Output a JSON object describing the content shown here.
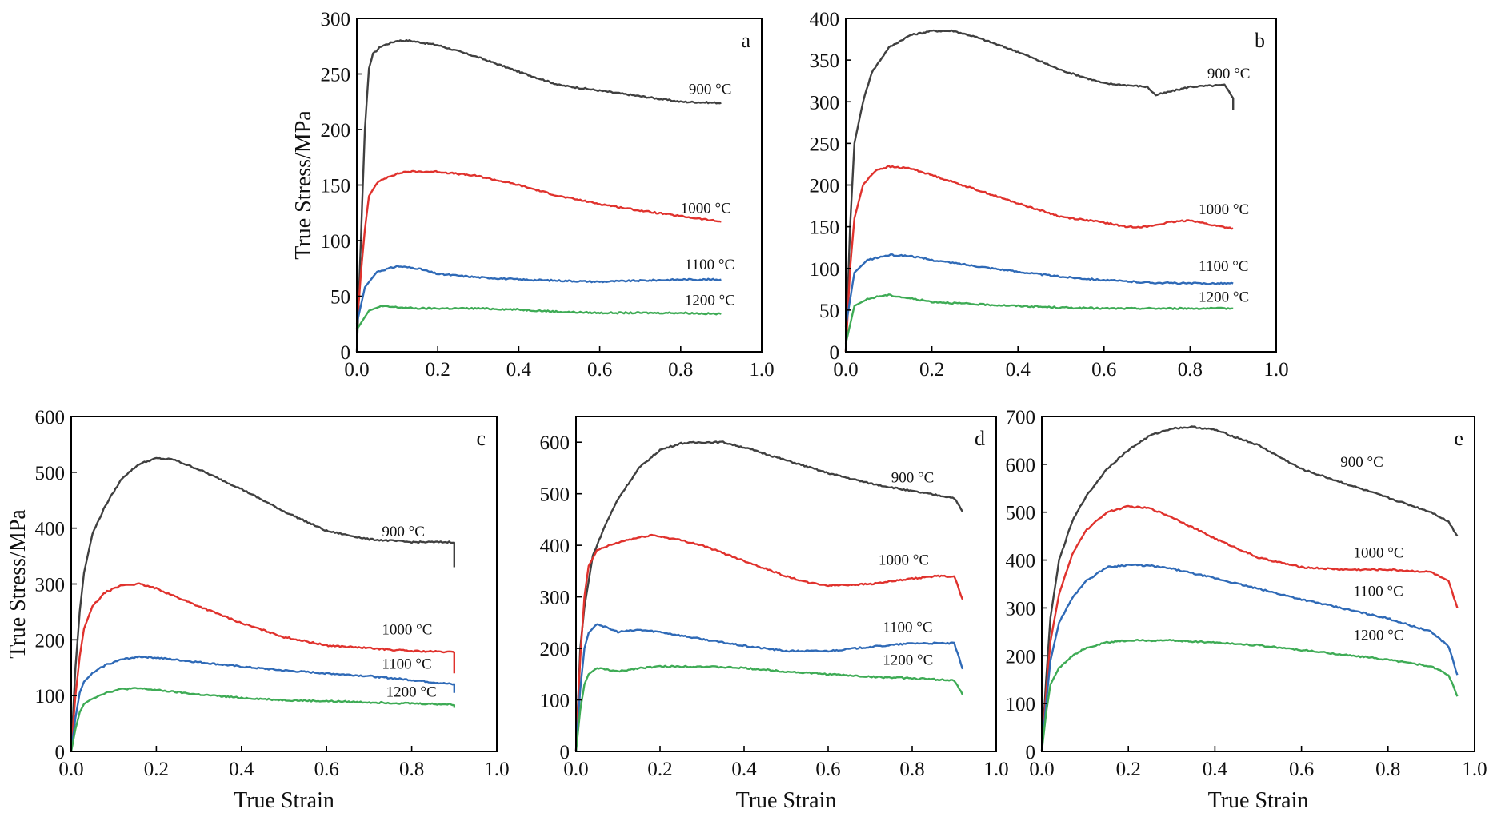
{
  "chart_data": [
    {
      "panel": "a",
      "type": "line",
      "ylabel": "True Stress/MPa",
      "xlabel": "",
      "xlim": [
        0,
        1
      ],
      "ylim": [
        0,
        300
      ],
      "xticks": [
        "0.0",
        "0.2",
        "0.4",
        "0.6",
        "0.8",
        "1.0"
      ],
      "yticks": [
        "0",
        "50",
        "100",
        "150",
        "200",
        "250",
        "300"
      ],
      "series": [
        {
          "name": "900 °C",
          "color": "#404040",
          "label_at": [
            0.82,
            232
          ],
          "x": [
            0,
            0.01,
            0.02,
            0.03,
            0.04,
            0.06,
            0.1,
            0.13,
            0.2,
            0.3,
            0.4,
            0.5,
            0.6,
            0.7,
            0.8,
            0.9
          ],
          "y": [
            0,
            100,
            200,
            255,
            268,
            275,
            280,
            280,
            276,
            265,
            252,
            240,
            235,
            230,
            225,
            224
          ]
        },
        {
          "name": "1000 °C",
          "color": "#e0322d",
          "label_at": [
            0.8,
            125
          ],
          "x": [
            0,
            0.01,
            0.02,
            0.03,
            0.05,
            0.08,
            0.12,
            0.2,
            0.3,
            0.4,
            0.5,
            0.6,
            0.7,
            0.8,
            0.9
          ],
          "y": [
            20,
            70,
            110,
            140,
            152,
            158,
            162,
            162,
            158,
            150,
            140,
            133,
            127,
            122,
            117
          ]
        },
        {
          "name": "1100 °C",
          "color": "#2f6ab7",
          "label_at": [
            0.81,
            74
          ],
          "x": [
            0,
            0.02,
            0.05,
            0.1,
            0.15,
            0.2,
            0.3,
            0.4,
            0.5,
            0.6,
            0.7,
            0.8,
            0.9
          ],
          "y": [
            25,
            58,
            72,
            77,
            75,
            70,
            67,
            65,
            64,
            63,
            64,
            65,
            65
          ]
        },
        {
          "name": "1200 °C",
          "color": "#3eab55",
          "label_at": [
            0.81,
            42
          ],
          "x": [
            0,
            0.03,
            0.06,
            0.1,
            0.15,
            0.2,
            0.3,
            0.4,
            0.5,
            0.6,
            0.7,
            0.8,
            0.9
          ],
          "y": [
            20,
            37,
            41,
            40,
            39,
            39,
            39,
            38,
            36,
            35,
            35,
            35,
            34
          ]
        }
      ]
    },
    {
      "panel": "b",
      "type": "line",
      "ylabel": "",
      "xlabel": "",
      "xlim": [
        0,
        1
      ],
      "ylim": [
        0,
        400
      ],
      "xticks": [
        "0.0",
        "0.2",
        "0.4",
        "0.6",
        "0.8",
        "1.0"
      ],
      "yticks": [
        "0",
        "50",
        "100",
        "150",
        "200",
        "250",
        "300",
        "350",
        "400"
      ],
      "series": [
        {
          "name": "900 °C",
          "color": "#404040",
          "label_at": [
            0.84,
            328
          ],
          "x": [
            0,
            0.01,
            0.02,
            0.04,
            0.06,
            0.1,
            0.15,
            0.2,
            0.25,
            0.3,
            0.4,
            0.5,
            0.6,
            0.7,
            0.72,
            0.8,
            0.88,
            0.9,
            0.9
          ],
          "y": [
            0,
            150,
            250,
            300,
            335,
            365,
            380,
            385,
            385,
            378,
            360,
            338,
            322,
            318,
            308,
            318,
            320,
            305,
            290
          ]
        },
        {
          "name": "1000 °C",
          "color": "#e0322d",
          "label_at": [
            0.82,
            165
          ],
          "x": [
            0,
            0.01,
            0.02,
            0.04,
            0.07,
            0.1,
            0.15,
            0.2,
            0.3,
            0.4,
            0.5,
            0.6,
            0.65,
            0.7,
            0.75,
            0.8,
            0.85,
            0.9
          ],
          "y": [
            0,
            100,
            160,
            200,
            218,
            222,
            220,
            212,
            195,
            178,
            162,
            155,
            150,
            150,
            155,
            158,
            152,
            148
          ]
        },
        {
          "name": "1100 °C",
          "color": "#2f6ab7",
          "label_at": [
            0.82,
            97
          ],
          "x": [
            0,
            0.02,
            0.05,
            0.1,
            0.15,
            0.2,
            0.3,
            0.4,
            0.5,
            0.6,
            0.7,
            0.8,
            0.9
          ],
          "y": [
            30,
            95,
            110,
            116,
            115,
            110,
            103,
            96,
            90,
            86,
            83,
            82,
            82
          ]
        },
        {
          "name": "1200 °C",
          "color": "#3eab55",
          "label_at": [
            0.82,
            60
          ],
          "x": [
            0,
            0.02,
            0.05,
            0.08,
            0.1,
            0.15,
            0.2,
            0.3,
            0.4,
            0.5,
            0.6,
            0.7,
            0.8,
            0.9
          ],
          "y": [
            10,
            55,
            63,
            67,
            68,
            64,
            60,
            57,
            55,
            53,
            52,
            52,
            52,
            52
          ]
        }
      ]
    },
    {
      "panel": "c",
      "type": "line",
      "ylabel": "True Stress/MPa",
      "xlabel": "True Strain",
      "xlim": [
        0,
        1
      ],
      "ylim": [
        0,
        600
      ],
      "xticks": [
        "0.0",
        "0.2",
        "0.4",
        "0.6",
        "0.8",
        "1.0"
      ],
      "yticks": [
        "0",
        "100",
        "200",
        "300",
        "400",
        "500",
        "600"
      ],
      "series": [
        {
          "name": "900 °C",
          "color": "#404040",
          "label_at": [
            0.73,
            385
          ],
          "x": [
            0,
            0.01,
            0.02,
            0.03,
            0.05,
            0.08,
            0.12,
            0.16,
            0.2,
            0.24,
            0.3,
            0.4,
            0.5,
            0.6,
            0.7,
            0.8,
            0.9,
            0.9
          ],
          "y": [
            0,
            150,
            250,
            320,
            390,
            440,
            490,
            515,
            525,
            523,
            505,
            470,
            430,
            395,
            380,
            375,
            375,
            330
          ]
        },
        {
          "name": "1000 °C",
          "color": "#e0322d",
          "label_at": [
            0.73,
            210
          ],
          "x": [
            0,
            0.01,
            0.02,
            0.03,
            0.05,
            0.08,
            0.12,
            0.16,
            0.2,
            0.3,
            0.4,
            0.5,
            0.6,
            0.7,
            0.8,
            0.9,
            0.9
          ],
          "y": [
            0,
            100,
            170,
            220,
            260,
            285,
            298,
            300,
            292,
            260,
            230,
            205,
            190,
            185,
            180,
            178,
            140
          ]
        },
        {
          "name": "1100 °C",
          "color": "#2f6ab7",
          "label_at": [
            0.73,
            148
          ],
          "x": [
            0,
            0.01,
            0.02,
            0.03,
            0.05,
            0.08,
            0.12,
            0.16,
            0.2,
            0.3,
            0.4,
            0.5,
            0.6,
            0.7,
            0.8,
            0.9,
            0.9
          ],
          "y": [
            0,
            60,
            105,
            125,
            140,
            155,
            165,
            170,
            168,
            160,
            152,
            145,
            140,
            135,
            128,
            120,
            105
          ]
        },
        {
          "name": "1200 °C",
          "color": "#3eab55",
          "label_at": [
            0.74,
            98
          ],
          "x": [
            0,
            0.01,
            0.02,
            0.03,
            0.05,
            0.08,
            0.12,
            0.16,
            0.2,
            0.3,
            0.4,
            0.5,
            0.6,
            0.7,
            0.8,
            0.9,
            0.9
          ],
          "y": [
            0,
            40,
            70,
            85,
            95,
            105,
            112,
            113,
            110,
            102,
            96,
            92,
            90,
            88,
            86,
            84,
            78
          ]
        }
      ]
    },
    {
      "panel": "d",
      "type": "line",
      "ylabel": "",
      "xlabel": "True Strain",
      "xlim": [
        0,
        1
      ],
      "ylim": [
        0,
        650
      ],
      "xticks": [
        "0.0",
        "0.2",
        "0.4",
        "0.6",
        "0.8",
        "1.0"
      ],
      "yticks": [
        "0",
        "100",
        "200",
        "300",
        "400",
        "500",
        "600"
      ],
      "series": [
        {
          "name": "900 °C",
          "color": "#404040",
          "label_at": [
            0.75,
            522
          ],
          "x": [
            0,
            0.01,
            0.02,
            0.04,
            0.07,
            0.1,
            0.15,
            0.2,
            0.25,
            0.3,
            0.35,
            0.4,
            0.5,
            0.6,
            0.7,
            0.8,
            0.9,
            0.92
          ],
          "y": [
            0,
            200,
            280,
            380,
            440,
            490,
            550,
            585,
            598,
            600,
            600,
            590,
            565,
            540,
            520,
            505,
            492,
            465
          ]
        },
        {
          "name": "1000 °C",
          "color": "#e0322d",
          "label_at": [
            0.72,
            362
          ],
          "x": [
            0,
            0.01,
            0.02,
            0.03,
            0.05,
            0.08,
            0.12,
            0.18,
            0.25,
            0.3,
            0.4,
            0.5,
            0.55,
            0.6,
            0.7,
            0.8,
            0.85,
            0.9,
            0.92
          ],
          "y": [
            0,
            180,
            300,
            360,
            390,
            400,
            410,
            420,
            410,
            400,
            370,
            340,
            328,
            322,
            325,
            335,
            340,
            340,
            295
          ]
        },
        {
          "name": "1100 °C",
          "color": "#2f6ab7",
          "label_at": [
            0.73,
            232
          ],
          "x": [
            0,
            0.01,
            0.02,
            0.03,
            0.05,
            0.08,
            0.1,
            0.15,
            0.2,
            0.3,
            0.4,
            0.5,
            0.6,
            0.7,
            0.8,
            0.9,
            0.92
          ],
          "y": [
            0,
            120,
            200,
            230,
            248,
            238,
            232,
            236,
            232,
            218,
            205,
            195,
            195,
            203,
            210,
            210,
            160
          ]
        },
        {
          "name": "1200 °C",
          "color": "#3eab55",
          "label_at": [
            0.73,
            168
          ],
          "x": [
            0,
            0.01,
            0.02,
            0.03,
            0.05,
            0.08,
            0.1,
            0.15,
            0.2,
            0.3,
            0.4,
            0.5,
            0.6,
            0.7,
            0.8,
            0.9,
            0.92
          ],
          "y": [
            0,
            80,
            130,
            150,
            162,
            158,
            155,
            162,
            165,
            165,
            162,
            155,
            150,
            145,
            142,
            138,
            110
          ]
        }
      ]
    },
    {
      "panel": "e",
      "type": "line",
      "ylabel": "",
      "xlabel": "True Strain",
      "xlim": [
        0,
        1
      ],
      "ylim": [
        0,
        700
      ],
      "xticks": [
        "0.0",
        "0.2",
        "0.4",
        "0.6",
        "0.8",
        "1.0"
      ],
      "yticks": [
        "0",
        "100",
        "200",
        "300",
        "400",
        "500",
        "600",
        "700"
      ],
      "series": [
        {
          "name": "900 °C",
          "color": "#404040",
          "label_at": [
            0.69,
            595
          ],
          "x": [
            0,
            0.01,
            0.02,
            0.04,
            0.07,
            0.1,
            0.15,
            0.2,
            0.25,
            0.3,
            0.35,
            0.4,
            0.5,
            0.6,
            0.7,
            0.8,
            0.9,
            0.94,
            0.96
          ],
          "y": [
            0,
            150,
            280,
            400,
            480,
            530,
            590,
            630,
            660,
            675,
            678,
            672,
            640,
            590,
            560,
            530,
            500,
            480,
            450
          ]
        },
        {
          "name": "1000 °C",
          "color": "#e0322d",
          "label_at": [
            0.72,
            405
          ],
          "x": [
            0,
            0.01,
            0.02,
            0.04,
            0.07,
            0.1,
            0.15,
            0.2,
            0.25,
            0.3,
            0.4,
            0.5,
            0.6,
            0.7,
            0.8,
            0.9,
            0.94,
            0.96
          ],
          "y": [
            0,
            120,
            230,
            330,
            410,
            460,
            500,
            512,
            508,
            490,
            445,
            405,
            385,
            380,
            380,
            375,
            355,
            300
          ]
        },
        {
          "name": "1100 °C",
          "color": "#2f6ab7",
          "label_at": [
            0.72,
            325
          ],
          "x": [
            0,
            0.01,
            0.02,
            0.04,
            0.07,
            0.1,
            0.15,
            0.2,
            0.25,
            0.3,
            0.4,
            0.5,
            0.6,
            0.7,
            0.8,
            0.9,
            0.94,
            0.96
          ],
          "y": [
            0,
            100,
            190,
            270,
            320,
            355,
            385,
            390,
            388,
            382,
            362,
            340,
            318,
            298,
            278,
            250,
            220,
            160
          ]
        },
        {
          "name": "1200 °C",
          "color": "#3eab55",
          "label_at": [
            0.72,
            233
          ],
          "x": [
            0,
            0.01,
            0.02,
            0.04,
            0.07,
            0.1,
            0.15,
            0.2,
            0.25,
            0.3,
            0.4,
            0.5,
            0.6,
            0.7,
            0.8,
            0.9,
            0.94,
            0.96
          ],
          "y": [
            0,
            80,
            140,
            175,
            200,
            215,
            228,
            232,
            232,
            232,
            228,
            222,
            212,
            202,
            192,
            178,
            160,
            115
          ]
        }
      ]
    }
  ]
}
